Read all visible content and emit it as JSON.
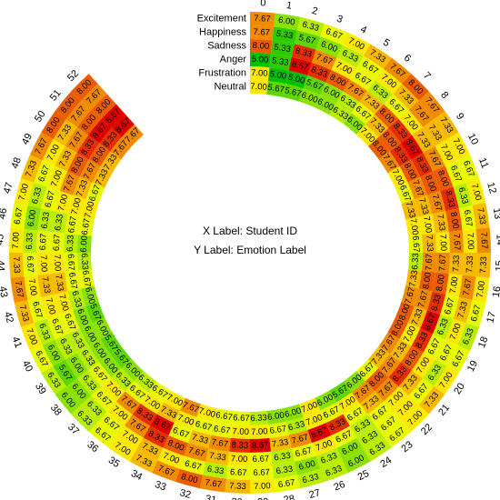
{
  "chart_data": {
    "type": "heatmap",
    "layout": "circular",
    "x_label_text": "X Label: Student ID",
    "y_label_text": "Y Label: Emotion Label",
    "rows": [
      "Neutral",
      "Frustration",
      "Anger",
      "Sadness",
      "Happiness",
      "Excitement"
    ],
    "columns": [
      "0",
      "1",
      "2",
      "3",
      "4",
      "5",
      "6",
      "7",
      "8",
      "9",
      "10",
      "11",
      "12",
      "13",
      "14",
      "15",
      "16",
      "17",
      "18",
      "19",
      "20",
      "21",
      "22",
      "23",
      "24",
      "25",
      "26",
      "27",
      "28",
      "29",
      "30",
      "31",
      "32",
      "33",
      "34",
      "35",
      "36",
      "37",
      "38",
      "39",
      "40",
      "41",
      "42",
      "43",
      "44",
      "45",
      "46",
      "47",
      "48",
      "49",
      "50",
      "51",
      "52"
    ],
    "values": [
      [
        7.0,
        5.67,
        5.67,
        6.0,
        6.0,
        6.33,
        6.0,
        7.0,
        8.0,
        7.67,
        7.0,
        6.67,
        7.33,
        7.0,
        6.67,
        6.33,
        7.33,
        7.67,
        8.0,
        8.0,
        7.67,
        7.33,
        6.67,
        6.0,
        5.67,
        6.0,
        7.0,
        6.0,
        6.0,
        6.33,
        6.67,
        6.67,
        7.0,
        7.67,
        7.0,
        6.67,
        6.33,
        6.0,
        5.67,
        5.67,
        6.0,
        5.67,
        6.0,
        6.67,
        6.33,
        6.0,
        6.67,
        7.0,
        6.67,
        7.33,
        7.33,
        7.67,
        7.67
      ],
      [
        7.0,
        5.0,
        5.0,
        5.67,
        6.0,
        6.33,
        6.67,
        7.33,
        8.0,
        8.33,
        8.0,
        7.67,
        7.33,
        7.0,
        7.33,
        7.67,
        8.0,
        7.67,
        7.33,
        7.0,
        7.33,
        7.67,
        8.0,
        7.67,
        7.0,
        6.67,
        7.0,
        6.33,
        6.67,
        7.0,
        7.0,
        6.67,
        6.67,
        7.0,
        7.33,
        7.0,
        6.67,
        6.33,
        6.0,
        6.0,
        6.0,
        6.0,
        6.33,
        6.67,
        6.67,
        6.33,
        6.67,
        7.0,
        7.33,
        7.67,
        8.0,
        8.33,
        8.67
      ],
      [
        5.0,
        5.33,
        8.67,
        8.33,
        8.0,
        7.67,
        7.33,
        8.0,
        8.33,
        8.67,
        8.33,
        8.0,
        7.67,
        7.33,
        7.0,
        7.67,
        8.0,
        8.33,
        8.67,
        8.33,
        8.0,
        8.33,
        7.67,
        7.33,
        6.67,
        8.33,
        8.67,
        7.67,
        7.33,
        8.67,
        8.33,
        7.67,
        7.33,
        6.67,
        8.67,
        8.33,
        7.67,
        7.0,
        6.67,
        6.33,
        6.33,
        6.67,
        7.0,
        7.33,
        7.0,
        6.67,
        6.33,
        7.0,
        7.67,
        8.0,
        8.33,
        8.67,
        8.67
      ],
      [
        8.0,
        5.33,
        8.33,
        7.67,
        7.0,
        6.67,
        6.33,
        6.67,
        7.0,
        7.33,
        7.67,
        8.0,
        8.33,
        8.0,
        7.67,
        7.33,
        7.0,
        6.67,
        6.33,
        6.67,
        7.0,
        7.33,
        7.0,
        6.67,
        6.33,
        6.67,
        7.0,
        6.67,
        6.33,
        6.67,
        7.0,
        7.33,
        7.67,
        8.0,
        8.33,
        7.67,
        7.0,
        6.67,
        6.33,
        6.0,
        6.33,
        6.67,
        7.0,
        7.33,
        7.0,
        6.67,
        6.33,
        6.67,
        7.0,
        7.33,
        7.67,
        8.0,
        8.0
      ],
      [
        7.67,
        5.33,
        5.67,
        6.0,
        6.33,
        6.67,
        7.0,
        7.33,
        7.67,
        7.33,
        7.0,
        6.67,
        6.33,
        6.67,
        7.0,
        7.33,
        7.67,
        7.33,
        7.0,
        6.67,
        6.33,
        6.67,
        7.0,
        6.67,
        6.33,
        6.0,
        6.33,
        6.0,
        6.33,
        6.67,
        6.67,
        6.33,
        6.67,
        7.0,
        7.33,
        7.0,
        6.67,
        6.33,
        6.0,
        5.67,
        6.0,
        6.33,
        6.67,
        7.0,
        6.67,
        6.33,
        6.0,
        6.33,
        6.67,
        7.0,
        7.33,
        7.67,
        7.67
      ],
      [
        7.67,
        6.0,
        6.33,
        6.67,
        7.0,
        7.33,
        7.67,
        8.0,
        7.67,
        7.33,
        7.0,
        6.67,
        7.0,
        7.33,
        7.67,
        7.33,
        7.0,
        6.67,
        6.33,
        6.67,
        7.0,
        7.33,
        7.0,
        6.67,
        6.33,
        6.0,
        6.33,
        6.33,
        6.67,
        7.0,
        7.33,
        7.67,
        8.0,
        7.67,
        7.33,
        7.0,
        6.67,
        6.33,
        6.0,
        6.33,
        6.67,
        7.0,
        7.33,
        7.67,
        7.33,
        7.0,
        6.67,
        7.0,
        7.33,
        7.67,
        8.0,
        8.0,
        8.0
      ]
    ],
    "color_scale": {
      "low": "#00c000",
      "mid": "#ffff00",
      "high": "#e00000",
      "vmin": 5.0,
      "vmax": 8.67
    }
  }
}
